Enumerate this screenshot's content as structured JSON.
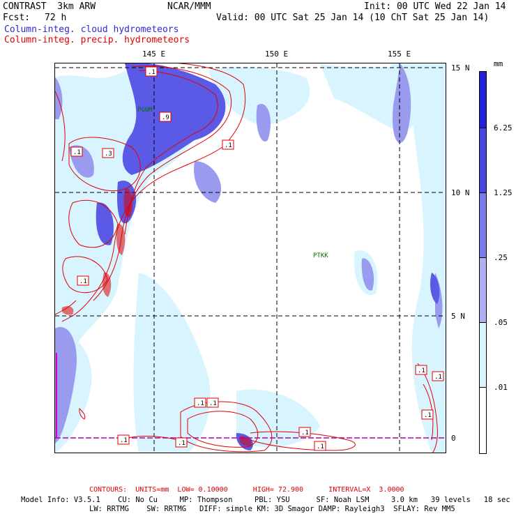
{
  "header": {
    "title": "CONTRAST  3km ARW",
    "center": "NCAR/MMM",
    "init": "Init: 00 UTC Wed 22 Jan 14",
    "fcst_label": "Fcst:",
    "fcst_value": "72 h",
    "valid": "Valid: 00 UTC Sat 25 Jan 14 (10 ChT Sat 25 Jan 14)",
    "field1": "Column-integ. cloud hydrometeors",
    "field2": "Column-integ. precip. hydrometeors"
  },
  "axes": {
    "lon_ticks": [
      "145 E",
      "150 E",
      "155 E"
    ],
    "lat_ticks": [
      "15 N",
      "10 N",
      "5 N",
      "0"
    ]
  },
  "stations": [
    "PGUM",
    "PTKK"
  ],
  "contour_labels": [
    ".1",
    ".3",
    ".9",
    ".1",
    ".1",
    ".1",
    ".1",
    ".1",
    ".1",
    ".1",
    ".1",
    ".1",
    ".1",
    ".1",
    ".1"
  ],
  "colorbar": {
    "unit": "mm",
    "levels": [
      "6.25",
      "1.25",
      ".25",
      ".05",
      ".01"
    ],
    "colors": [
      "#2020d8",
      "#4646e0",
      "#7a7ae8",
      "#b0b0f0",
      "#d8f4ff",
      "#ffffff"
    ]
  },
  "footer": {
    "contours": "CONTOURS:  UNITS=mm  LOW= 0.10000      HIGH= 72.900      INTERVAL=X  3.0000",
    "model_line1": "Model Info: V3.5.1    CU: No Cu     MP: Thompson     PBL: YSU      SF: Noah LSM     3.0 km   39 levels   18 sec",
    "model_line2": "LW: RRTMG    SW: RRTMG   DIFF: simple KM: 3D Smagor DAMP: Rayleigh3  SFLAY: Rev MM5"
  },
  "colors": {
    "contour": "#e00000",
    "title_blue": "#2a2ad0"
  }
}
